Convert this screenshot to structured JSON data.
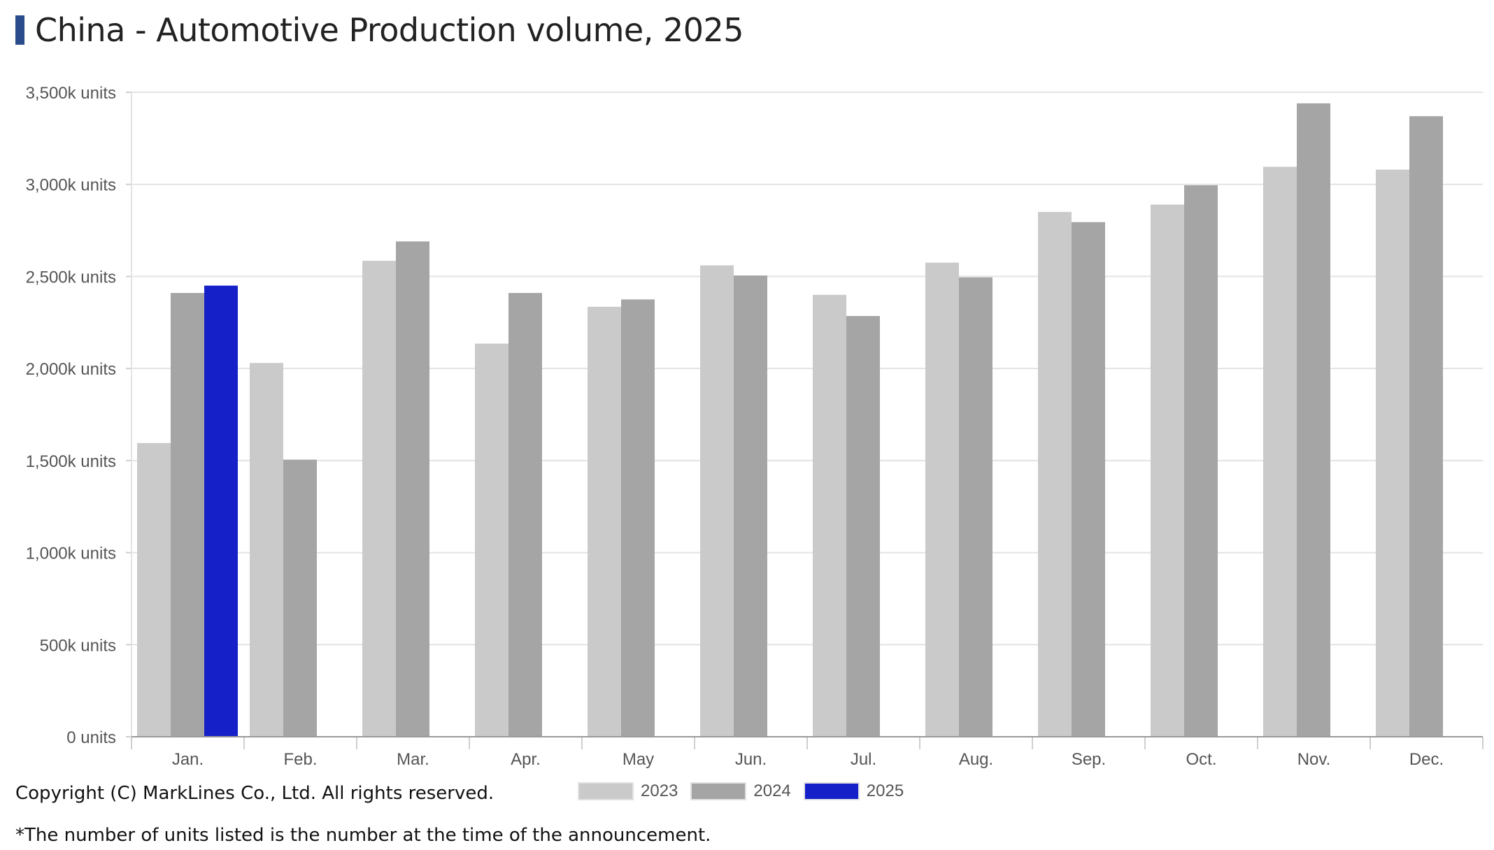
{
  "page": {
    "title": "China - Automotive Production volume, 2025",
    "copyright": "Copyright (C) MarkLines Co., Ltd. All rights reserved.",
    "footnote": "*The number of units listed is the number at the time of the announcement."
  },
  "chart_data": {
    "type": "bar",
    "title": "China - Automotive Production volume, 2025",
    "xlabel": "",
    "ylabel": "",
    "ylim": [
      0,
      3500
    ],
    "y_ticks": [
      0,
      500,
      1000,
      1500,
      2000,
      2500,
      3000,
      3500
    ],
    "y_tick_labels": [
      "0 units",
      "500k units",
      "1,000k units",
      "1,500k units",
      "2,000k units",
      "2,500k units",
      "3,000k units",
      "3,500k units"
    ],
    "grid": true,
    "legend_position": "bottom-center",
    "categories": [
      "Jan.",
      "Feb.",
      "Mar.",
      "Apr.",
      "May",
      "Jun.",
      "Jul.",
      "Aug.",
      "Sep.",
      "Oct.",
      "Nov.",
      "Dec."
    ],
    "series": [
      {
        "name": "2023",
        "color": "#cacaca",
        "values": [
          1595,
          2030,
          2585,
          2135,
          2335,
          2560,
          2400,
          2575,
          2850,
          2890,
          3095,
          3080
        ]
      },
      {
        "name": "2024",
        "color": "#a5a5a5",
        "values": [
          2410,
          1505,
          2690,
          2410,
          2375,
          2505,
          2285,
          2495,
          2795,
          2995,
          3440,
          3370
        ]
      },
      {
        "name": "2025",
        "color": "#1520c8",
        "values": [
          2450,
          null,
          null,
          null,
          null,
          null,
          null,
          null,
          null,
          null,
          null,
          null
        ]
      }
    ]
  }
}
